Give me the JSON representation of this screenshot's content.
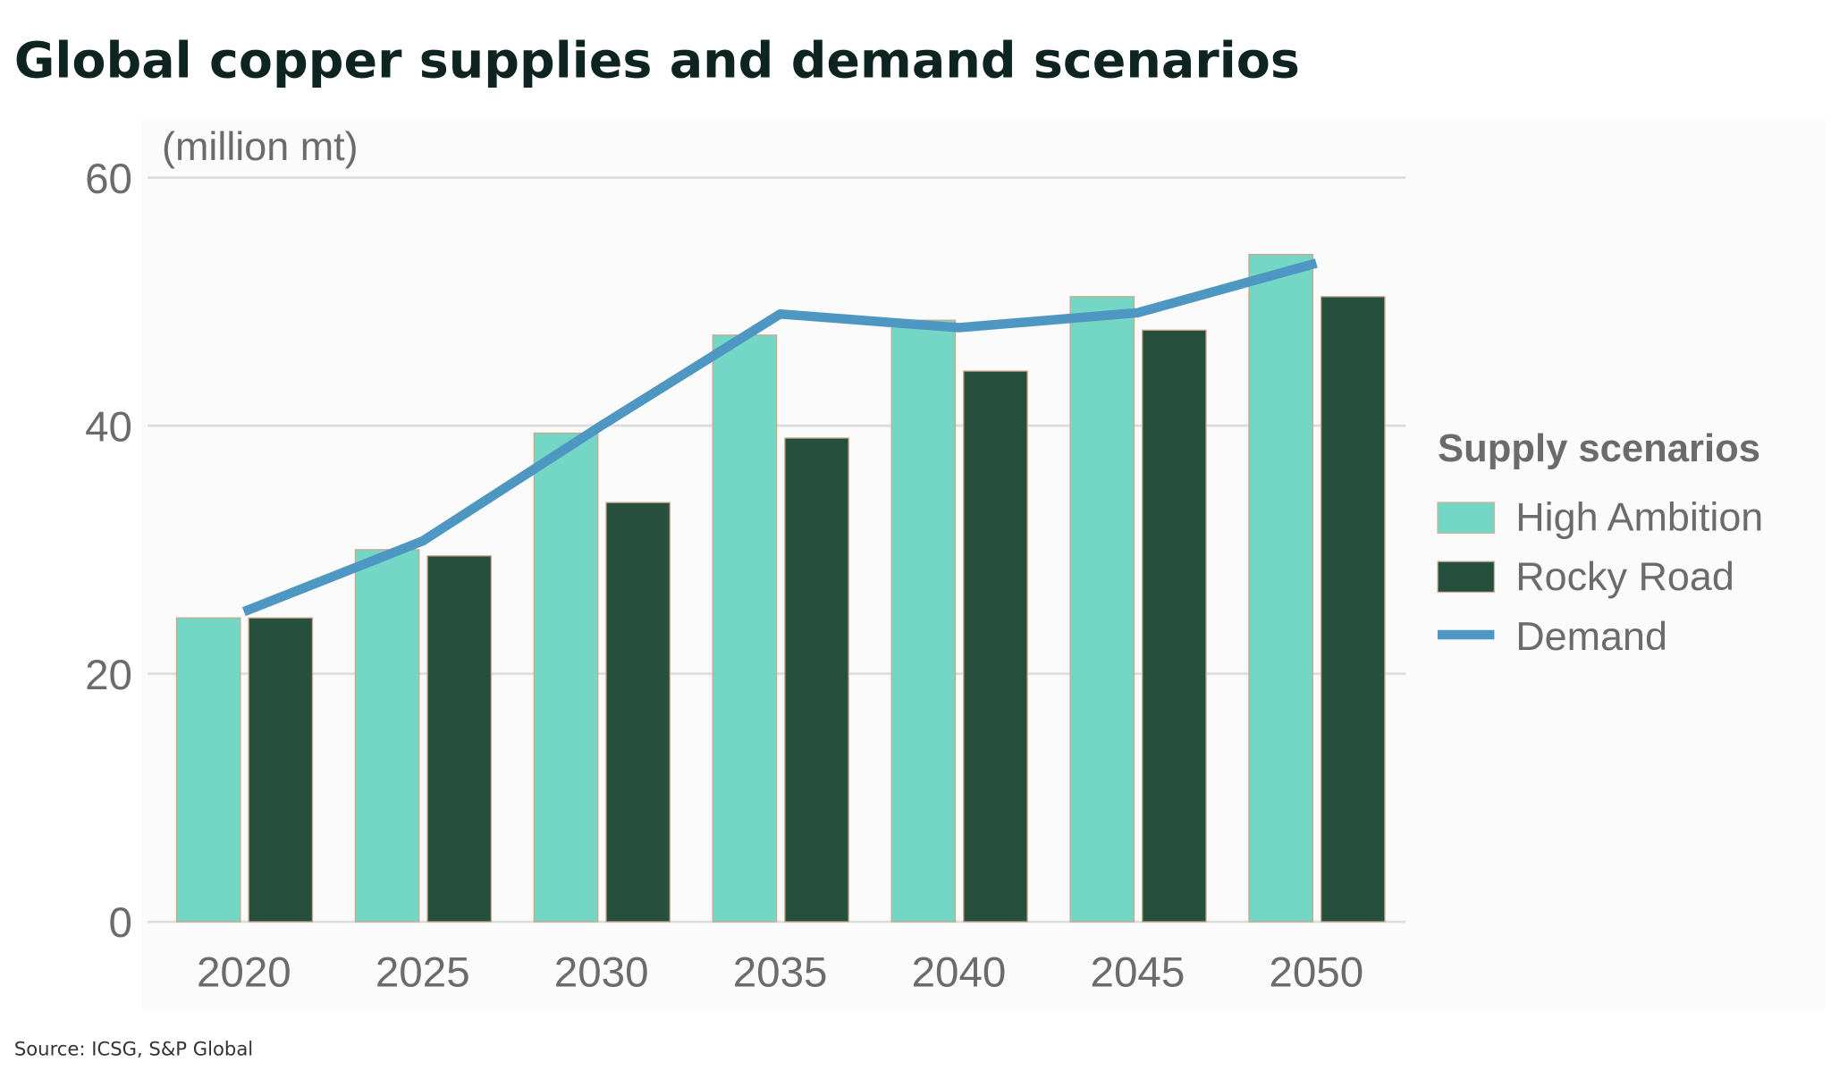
{
  "title": "Global copper supplies and demand scenarios",
  "source": "Source: ICSG, S&P Global",
  "chart_data": {
    "type": "bar",
    "ylabel": "(million mt)",
    "ylim": [
      0,
      60
    ],
    "yticks": [
      "0",
      "20",
      "40",
      "60"
    ],
    "grid": true,
    "categories": [
      "2020",
      "2025",
      "2030",
      "2035",
      "2040",
      "2045",
      "2050"
    ],
    "legend_title": "Supply scenarios",
    "legend_position": "right",
    "series": [
      {
        "name": "High Ambition",
        "type": "bar",
        "color": "#74d7c5",
        "values": [
          24.5,
          30,
          39.4,
          47.3,
          48.5,
          50.4,
          53.8
        ]
      },
      {
        "name": "Rocky Road",
        "type": "bar",
        "color": "#264f3e",
        "values": [
          24.5,
          29.5,
          33.8,
          39,
          44.4,
          47.7,
          50.4
        ]
      },
      {
        "name": "Demand",
        "type": "line",
        "color": "#4e97c2",
        "values": [
          25,
          30.7,
          40,
          49,
          47.9,
          49.1,
          53.1
        ]
      }
    ]
  }
}
